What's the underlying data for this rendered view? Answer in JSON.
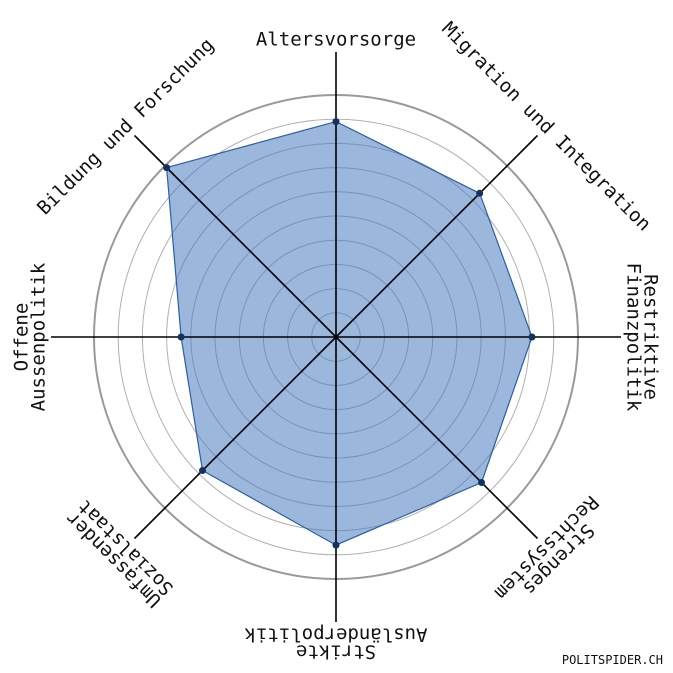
{
  "chart_data": {
    "type": "radar",
    "categories": [
      [
        "Altersvorsorge"
      ],
      [
        "Migration und Integration"
      ],
      [
        "Restriktive",
        "Finanzpolitik"
      ],
      [
        "Strenges",
        "Rechtssystem"
      ],
      [
        "Strikte",
        "Ausländerpolitik"
      ],
      [
        "Umfassender",
        "Sozialstaat"
      ],
      [
        "Offene",
        "Aussenpolitik"
      ],
      [
        "Bildung und Forschung"
      ]
    ],
    "values": [
      89,
      84,
      81,
      85,
      86,
      78,
      64,
      99
    ],
    "color": "#4a7bc0",
    "ylim": [
      0,
      100
    ],
    "yticks": [
      10,
      20,
      30,
      40,
      50,
      60,
      70,
      80,
      90,
      100
    ],
    "grid": true,
    "source": "POLITSPIDER.CH"
  }
}
